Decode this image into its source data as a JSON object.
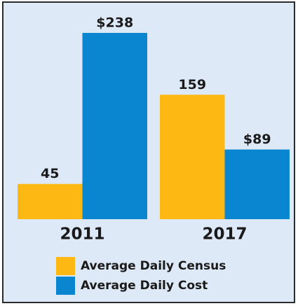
{
  "chart_data": {
    "type": "bar",
    "categories": [
      "2011",
      "2017"
    ],
    "series": [
      {
        "name": "Average Daily Census",
        "color": "#fdb813",
        "values": [
          45,
          159
        ]
      },
      {
        "name": "Average Daily Cost",
        "color": "#0a85cf",
        "values": [
          238,
          89
        ],
        "value_labels": [
          "$238",
          "$89"
        ]
      }
    ]
  }
}
